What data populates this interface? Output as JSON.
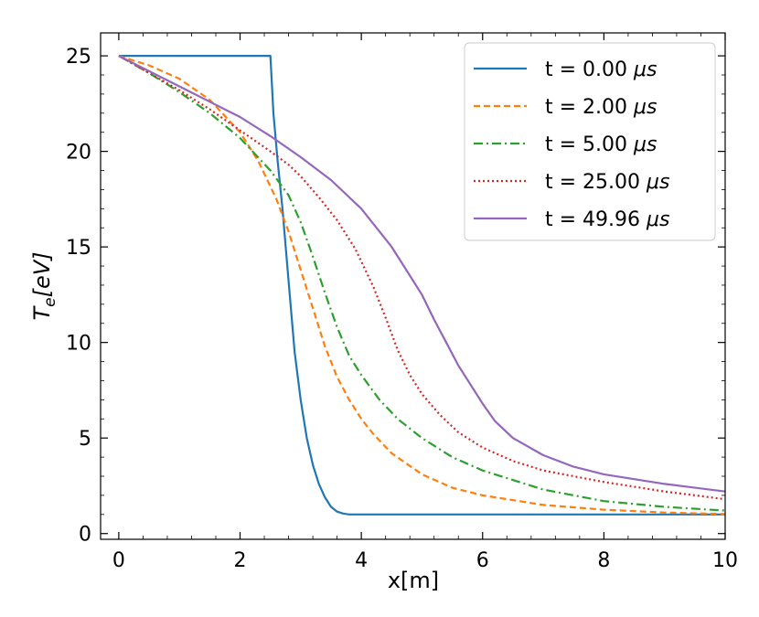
{
  "chart_data": {
    "type": "line",
    "title": "",
    "xlabel": "x[m]",
    "ylabel_main": "T",
    "ylabel_sub": "e",
    "ylabel_unit": "[eV]",
    "xlim": [
      -0.3,
      10
    ],
    "ylim": [
      -0.3,
      26.2
    ],
    "x_ticks": [
      0,
      2,
      4,
      6,
      8,
      10
    ],
    "y_ticks": [
      0,
      5,
      10,
      15,
      20,
      25
    ],
    "grid": false,
    "legend_position": "top-right",
    "series": [
      {
        "name": "t = 0.00 μs",
        "name_prefix": "t = 0.00 ",
        "name_unit": "μs",
        "color": "#1f77b4",
        "style": "solid",
        "x": [
          0,
          2.5,
          2.55,
          2.62,
          2.7,
          2.8,
          2.9,
          3.0,
          3.1,
          3.2,
          3.3,
          3.4,
          3.5,
          3.6,
          3.7,
          3.8,
          3.9,
          4.0,
          4.05,
          5,
          6,
          7,
          8,
          9,
          10
        ],
        "y": [
          25,
          25,
          22,
          19.5,
          17,
          13.2,
          9.5,
          7.0,
          5.0,
          3.6,
          2.6,
          1.9,
          1.4,
          1.15,
          1.05,
          1.0,
          1.0,
          1.0,
          1.0,
          1.0,
          1.0,
          1.0,
          1.0,
          1.0,
          1.0
        ]
      },
      {
        "name": "t = 2.00 μs",
        "name_prefix": "t = 2.00 ",
        "name_unit": "μs",
        "color": "#ff7f0e",
        "style": "dashed",
        "x": [
          0,
          0.5,
          1.0,
          1.5,
          2.0,
          2.3,
          2.6,
          2.8,
          3.0,
          3.2,
          3.4,
          3.6,
          3.8,
          4.0,
          4.2,
          4.5,
          5.0,
          5.5,
          6.0,
          7.0,
          8.0,
          9.0,
          10.0
        ],
        "y": [
          25,
          24.5,
          23.8,
          22.7,
          21.0,
          19.5,
          17.5,
          15.8,
          13.8,
          11.8,
          9.8,
          8.2,
          7.0,
          6.0,
          5.2,
          4.2,
          3.1,
          2.4,
          2.0,
          1.5,
          1.25,
          1.1,
          1.02
        ]
      },
      {
        "name": "t = 5.00 μs",
        "name_prefix": "t = 5.00 ",
        "name_unit": "μs",
        "color": "#2ca02c",
        "style": "dashdot",
        "x": [
          0,
          0.5,
          1.0,
          1.5,
          2.0,
          2.5,
          2.8,
          3.0,
          3.2,
          3.4,
          3.6,
          3.8,
          4.0,
          4.3,
          4.6,
          5.0,
          5.5,
          6.0,
          7.0,
          8.0,
          9.0,
          10.0
        ],
        "y": [
          25,
          24.1,
          23.1,
          22.0,
          20.7,
          19.0,
          17.7,
          16.3,
          14.5,
          12.6,
          10.8,
          9.3,
          8.3,
          7.0,
          6.0,
          5.0,
          4.0,
          3.3,
          2.3,
          1.7,
          1.4,
          1.2
        ]
      },
      {
        "name": "t = 25.00 μs",
        "name_prefix": "t = 25.00 ",
        "name_unit": "μs",
        "color": "#d62728",
        "style": "dotted",
        "x": [
          0,
          0.5,
          1.0,
          1.5,
          2.0,
          2.5,
          2.8,
          3.0,
          3.3,
          3.6,
          3.9,
          4.2,
          4.4,
          4.6,
          4.8,
          5.0,
          5.3,
          5.6,
          6.0,
          6.5,
          7.0,
          8.0,
          9.0,
          10.0
        ],
        "y": [
          25,
          24.1,
          23.2,
          22.2,
          21.1,
          20.0,
          19.3,
          18.7,
          17.6,
          16.4,
          14.9,
          12.9,
          11.3,
          9.6,
          8.3,
          7.3,
          6.2,
          5.3,
          4.5,
          3.8,
          3.3,
          2.7,
          2.2,
          1.8
        ]
      },
      {
        "name": "t = 49.96 μs",
        "name_prefix": "t = 49.96 ",
        "name_unit": "μs",
        "color": "#9467bd",
        "style": "solid",
        "x": [
          0,
          0.5,
          1.0,
          1.5,
          2.0,
          2.5,
          3.0,
          3.5,
          4.0,
          4.5,
          4.8,
          5.0,
          5.2,
          5.4,
          5.6,
          5.8,
          6.0,
          6.2,
          6.5,
          7.0,
          7.5,
          8.0,
          9.0,
          10.0
        ],
        "y": [
          25,
          24.2,
          23.4,
          22.6,
          21.8,
          20.8,
          19.7,
          18.5,
          17.0,
          15.0,
          13.5,
          12.5,
          11.2,
          10.0,
          8.8,
          7.8,
          6.8,
          5.9,
          5.0,
          4.1,
          3.5,
          3.1,
          2.6,
          2.2
        ]
      }
    ]
  }
}
